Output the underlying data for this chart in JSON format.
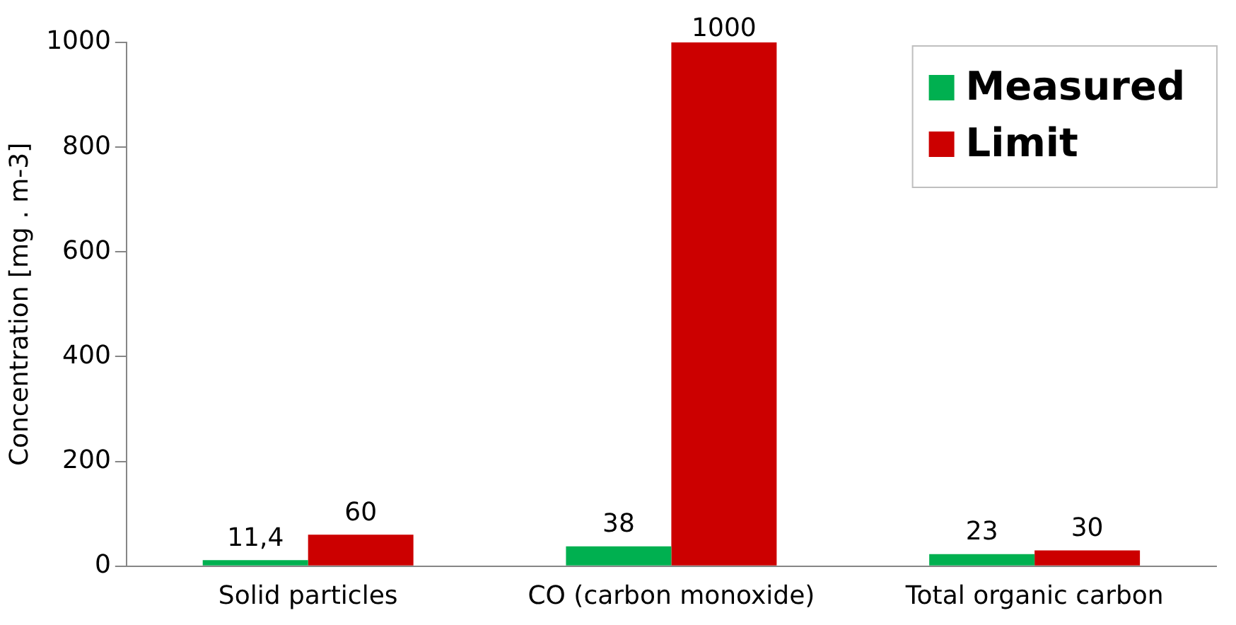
{
  "chart_data": {
    "type": "bar",
    "ylabel": "Concentration [mg . m-3]",
    "categories": [
      "Solid particles",
      "CO (carbon monoxide)",
      "Total organic carbon"
    ],
    "series": [
      {
        "name": "Measured",
        "color": "#00b050",
        "values": [
          11.4,
          38,
          23
        ],
        "value_labels": [
          "11,4",
          "38",
          "23"
        ]
      },
      {
        "name": "Limit",
        "color": "#cc0000",
        "values": [
          60,
          1000,
          30
        ],
        "value_labels": [
          "60",
          "1000",
          "30"
        ]
      }
    ],
    "ylim": [
      0,
      1000
    ],
    "yticks": [
      0,
      200,
      400,
      600,
      800,
      1000
    ],
    "grid": false,
    "legend": "top right"
  }
}
